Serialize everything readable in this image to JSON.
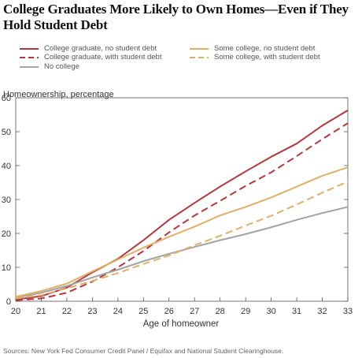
{
  "title": "College Graduates More Likely to Own Homes—Even if They Hold Student Debt",
  "chart_data": {
    "type": "line",
    "title": "College Graduates More Likely to Own Homes—Even if They Hold Student Debt",
    "ylabel": "Homeownership, percentage",
    "xlabel": "Age of homeowner",
    "x": [
      20,
      21,
      22,
      23,
      24,
      25,
      26,
      27,
      28,
      29,
      30,
      31,
      32,
      33
    ],
    "xlim": [
      20,
      33
    ],
    "ylim": [
      0,
      60
    ],
    "yticks": [
      0,
      10,
      20,
      30,
      40,
      50,
      60
    ],
    "grid": false,
    "legend_position": "top",
    "series": [
      {
        "name": "College graduate, no student debt",
        "color": "#b5373e",
        "dash": "solid",
        "values": [
          0.5,
          1.5,
          4.0,
          8.5,
          12.5,
          18.0,
          24.0,
          29.0,
          33.8,
          38.3,
          42.6,
          46.5,
          51.8,
          56.3
        ]
      },
      {
        "name": "College graduate, with student debt",
        "color": "#b5373e",
        "dash": "dashed",
        "values": [
          0.3,
          0.8,
          2.5,
          5.8,
          10.0,
          14.8,
          20.3,
          25.3,
          29.6,
          34.0,
          38.0,
          42.8,
          47.8,
          52.5
        ]
      },
      {
        "name": "No college",
        "color": "#a3a3a3",
        "dash": "solid",
        "values": [
          1.0,
          2.5,
          4.5,
          7.0,
          9.3,
          11.8,
          14.0,
          16.0,
          18.0,
          19.8,
          21.8,
          24.0,
          26.0,
          27.8
        ]
      },
      {
        "name": "Some college, no student debt",
        "color": "#e0b067",
        "dash": "solid",
        "values": [
          1.3,
          3.0,
          5.2,
          8.8,
          12.3,
          15.8,
          19.0,
          22.0,
          25.3,
          27.8,
          30.6,
          33.8,
          37.0,
          39.5
        ]
      },
      {
        "name": "Some college, with student debt",
        "color": "#e0b067",
        "dash": "dashed",
        "values": [
          0.8,
          1.8,
          3.8,
          6.0,
          8.3,
          11.0,
          13.5,
          16.5,
          19.3,
          22.3,
          25.2,
          28.5,
          32.0,
          35.3
        ]
      }
    ]
  },
  "source": "Sources: New York Fed Consumer Credit Panel / Equifax and National Student Clearinghouse."
}
